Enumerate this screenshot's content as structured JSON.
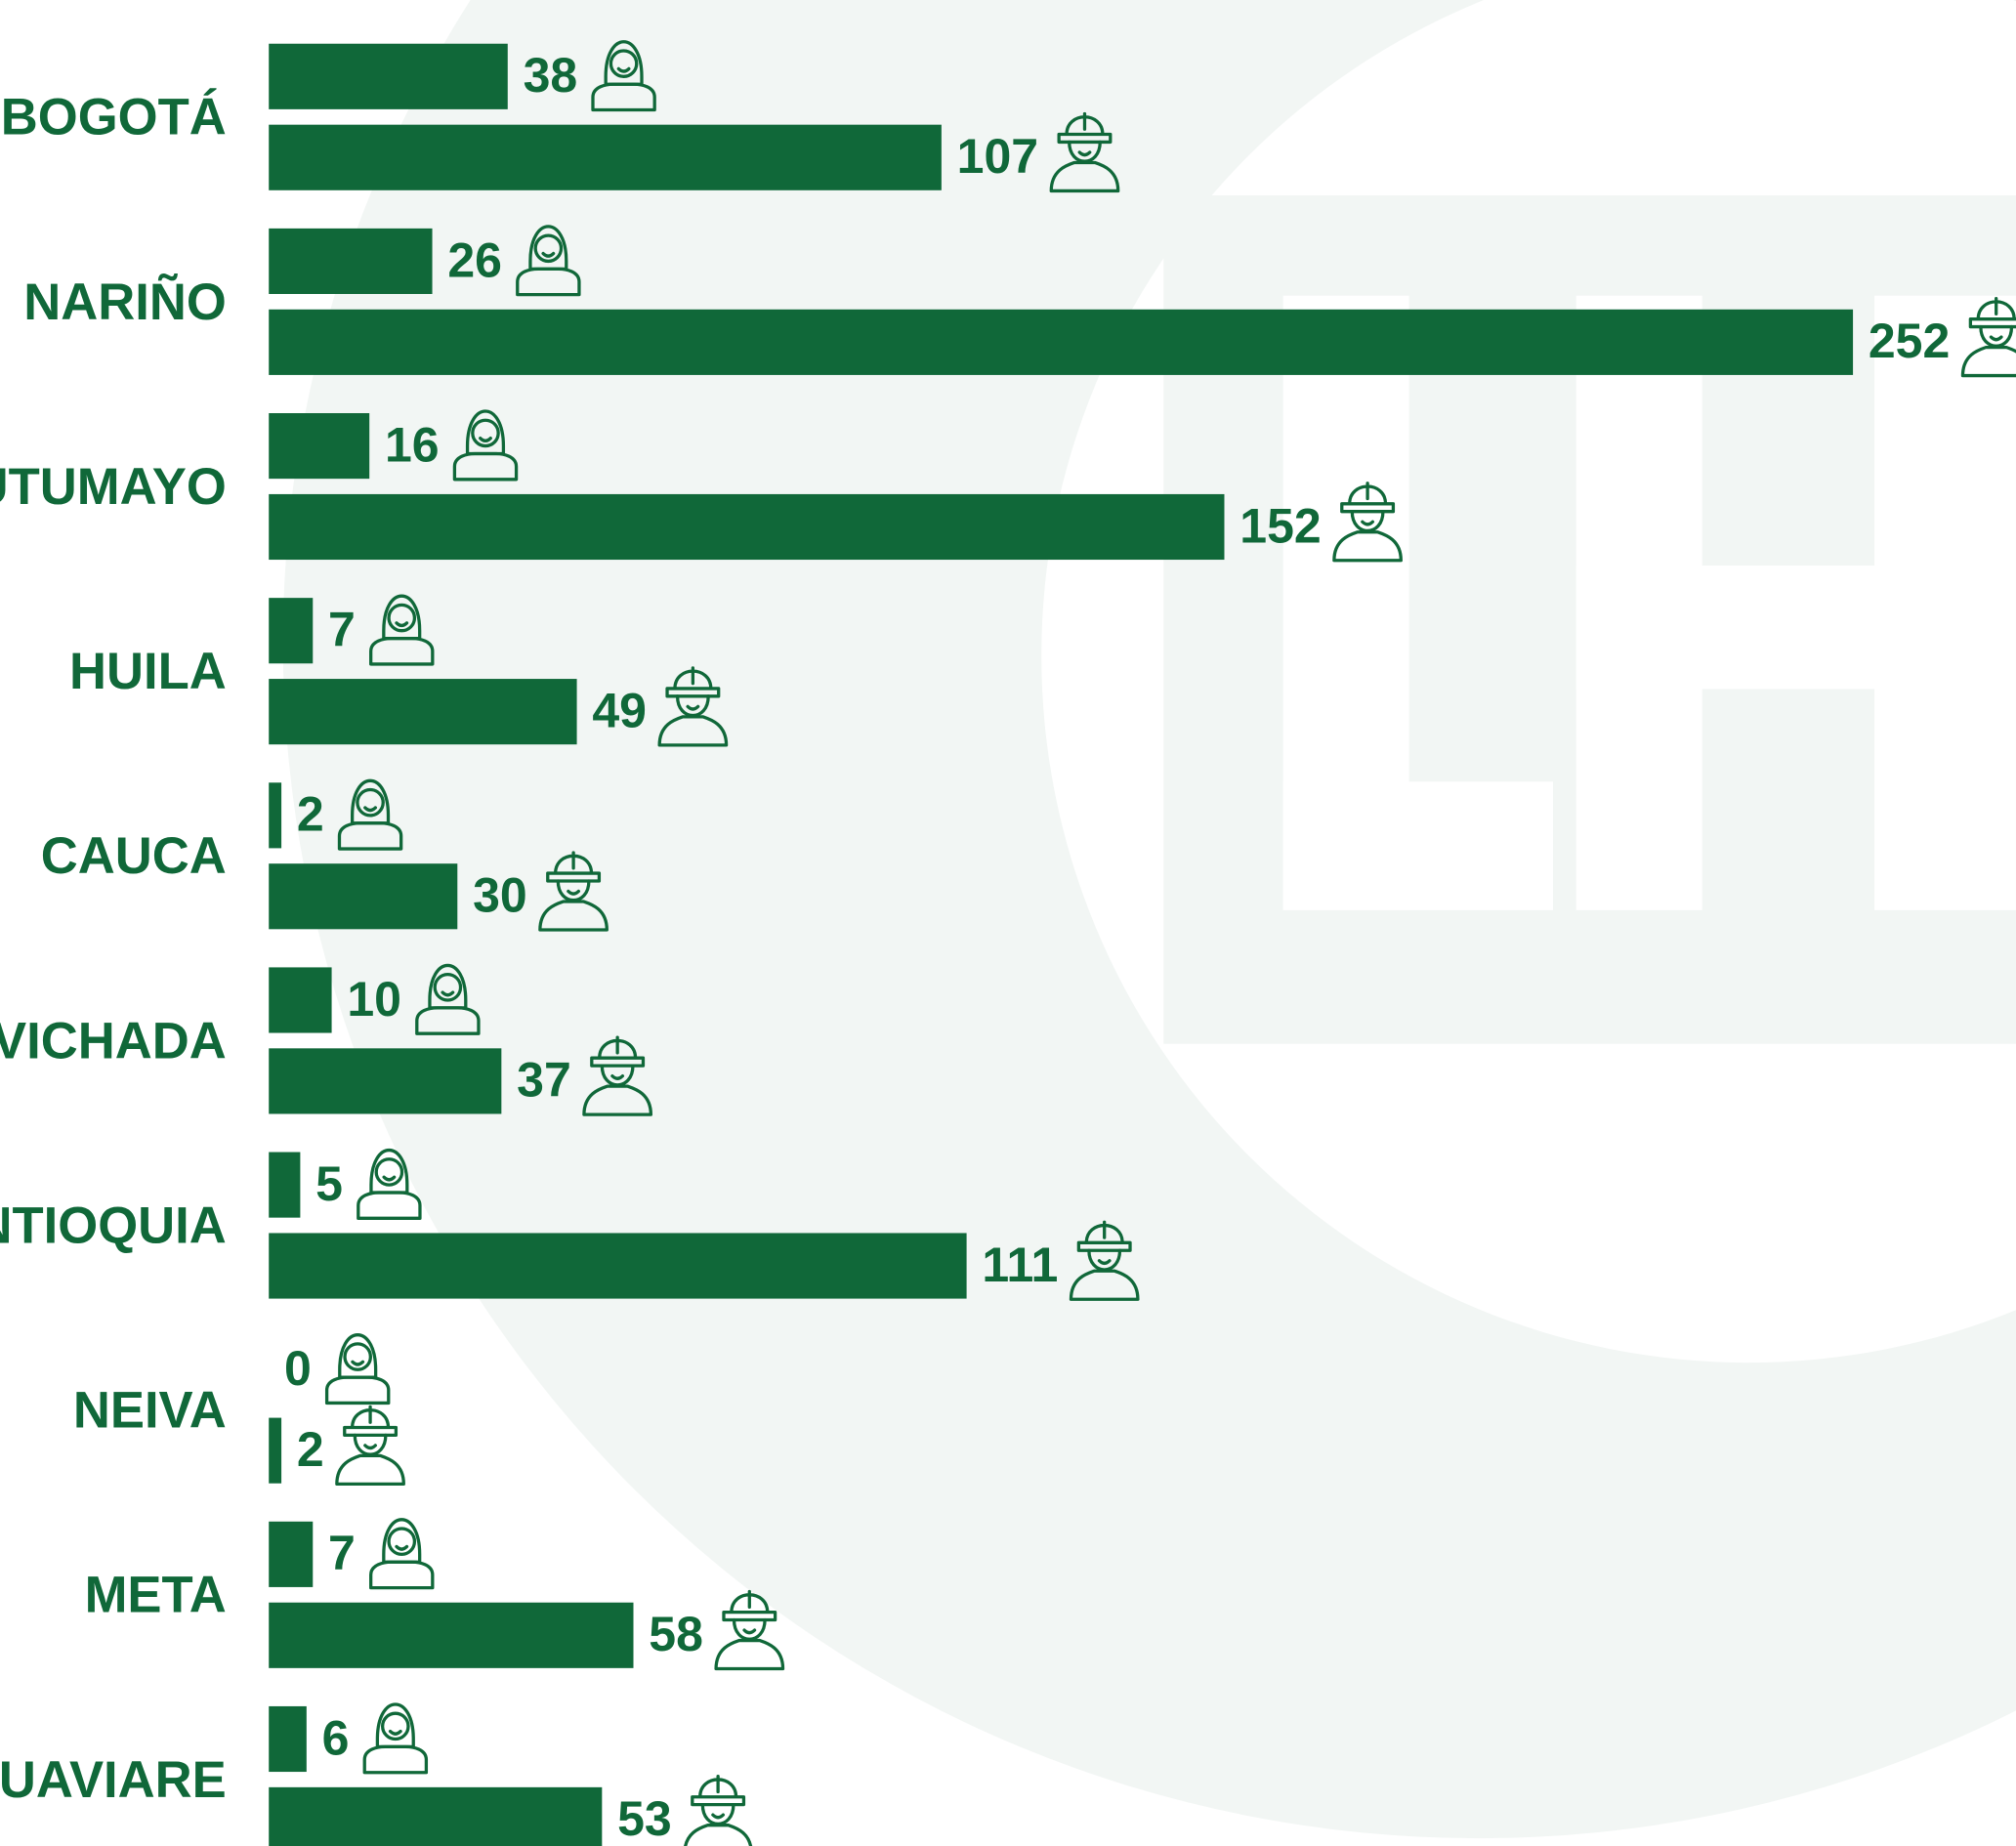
{
  "chart_data": {
    "type": "bar",
    "orientation": "horizontal",
    "categories": [
      "BOGOTÁ",
      "NARIÑO",
      "PUTUMAYO",
      "HUILA",
      "CAUCA",
      "VICHADA",
      "ANTIOQUIA",
      "NEIVA",
      "META",
      "GUAVIARE"
    ],
    "series": [
      {
        "color": "#106839",
        "values": [
          38,
          26,
          16,
          7,
          2,
          10,
          5,
          0,
          7,
          6
        ]
      },
      {
        "color": "#106839",
        "values": [
          107,
          252,
          152,
          49,
          30,
          37,
          111,
          2,
          58,
          53
        ]
      }
    ]
  }
}
